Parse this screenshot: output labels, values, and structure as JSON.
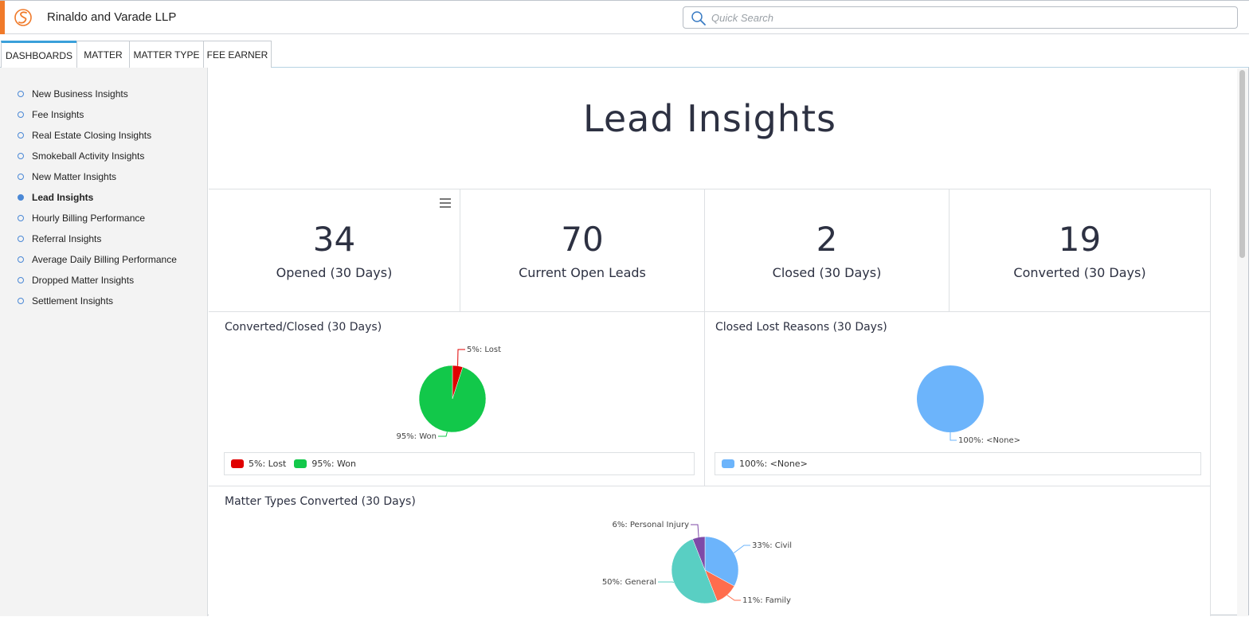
{
  "app": {
    "firm_name": "Rinaldo and Varade LLP",
    "accent_color": "#f07a2a",
    "logo_icon": "smokeball-logo-icon"
  },
  "search": {
    "placeholder": "Quick Search",
    "icon": "search-icon"
  },
  "tabs": [
    {
      "label": "DASHBOARDS",
      "active": true
    },
    {
      "label": "MATTER",
      "active": false
    },
    {
      "label": "MATTER TYPE",
      "active": false
    },
    {
      "label": "FEE EARNER",
      "active": false
    }
  ],
  "sidebar": {
    "items": [
      {
        "label": "New Business Insights",
        "active": false
      },
      {
        "label": "Fee Insights",
        "active": false
      },
      {
        "label": "Real Estate Closing Insights",
        "active": false
      },
      {
        "label": "Smokeball Activity Insights",
        "active": false
      },
      {
        "label": "New Matter Insights",
        "active": false
      },
      {
        "label": "Lead Insights",
        "active": true
      },
      {
        "label": "Hourly Billing Performance",
        "active": false
      },
      {
        "label": "Referral Insights",
        "active": false
      },
      {
        "label": "Average Daily Billing Performance",
        "active": false
      },
      {
        "label": "Dropped Matter Insights",
        "active": false
      },
      {
        "label": "Settlement Insights",
        "active": false
      }
    ]
  },
  "page": {
    "title": "Lead Insights"
  },
  "kpis": [
    {
      "value": "34",
      "label": "Opened (30 Days)"
    },
    {
      "value": "70",
      "label": "Current Open Leads"
    },
    {
      "value": "2",
      "label": "Closed (30 Days)"
    },
    {
      "value": "19",
      "label": "Converted (30 Days)"
    }
  ],
  "chart_data": [
    {
      "type": "pie",
      "title": "Converted/Closed (30 Days)",
      "slices": [
        {
          "label": "5%: Lost",
          "value": 5,
          "color": "#e00000"
        },
        {
          "label": "95%: Won",
          "value": 95,
          "color": "#12c84a"
        }
      ],
      "legend": "bottom"
    },
    {
      "type": "pie",
      "title": "Closed Lost Reasons (30 Days)",
      "slices": [
        {
          "label": "100%: <None>",
          "value": 100,
          "color": "#6cb4fb"
        }
      ],
      "legend": "bottom"
    },
    {
      "type": "pie",
      "title": "Matter Types Converted (30 Days)",
      "slices": [
        {
          "label": "33%: Civil",
          "value": 33,
          "color": "#6cb4fb"
        },
        {
          "label": "11%: Family",
          "value": 11,
          "color": "#ff6d4d"
        },
        {
          "label": "50%: General",
          "value": 50,
          "color": "#59cfc3"
        },
        {
          "label": "6%: Personal Injury",
          "value": 6,
          "color": "#7e4aa7"
        }
      ],
      "legend": "bottom"
    }
  ]
}
